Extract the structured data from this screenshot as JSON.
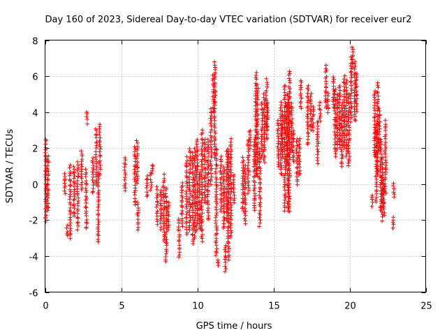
{
  "chart_data": {
    "type": "scatter",
    "title": "Day 160 of 2023, Sidereal Day-to-day VTEC variation (SDTVAR) for receiver eur2",
    "xlabel": "GPS time / hours",
    "ylabel": "SDTVAR / TECUs",
    "xlim": [
      0,
      25
    ],
    "ylim": [
      -6,
      8
    ],
    "xticks": [
      0,
      5,
      10,
      15,
      20,
      25
    ],
    "yticks": [
      -6,
      -4,
      -2,
      0,
      2,
      4,
      6,
      8
    ],
    "grid": true,
    "marker": "+",
    "color": "#ff0000",
    "segments": [
      [
        0.05,
        -2.1,
        2.5
      ],
      [
        0.18,
        -1.5,
        1.6
      ],
      [
        1.3,
        -0.5,
        0.6
      ],
      [
        1.45,
        -2.9,
        -2.3
      ],
      [
        1.65,
        -3.0,
        1.0
      ],
      [
        1.9,
        -1.8,
        1.0
      ],
      [
        2.15,
        -2.5,
        1.2
      ],
      [
        2.4,
        -0.3,
        1.8
      ],
      [
        2.7,
        -2.5,
        0.8
      ],
      [
        2.75,
        3.4,
        4.0
      ],
      [
        3.15,
        -0.5,
        1.5
      ],
      [
        3.35,
        0.0,
        3.1
      ],
      [
        3.5,
        -3.2,
        0.7
      ],
      [
        3.6,
        0.5,
        3.3
      ],
      [
        5.25,
        -0.4,
        1.5
      ],
      [
        5.9,
        -1.2,
        2.1
      ],
      [
        6.05,
        0.0,
        2.4
      ],
      [
        6.1,
        -2.5,
        -1.0
      ],
      [
        6.7,
        -0.7,
        0.5
      ],
      [
        6.95,
        -0.3,
        0.6
      ],
      [
        7.05,
        0.6,
        1.1
      ],
      [
        7.35,
        -2.2,
        -0.2
      ],
      [
        7.6,
        -2.5,
        -0.3
      ],
      [
        7.8,
        -3.2,
        0.5
      ],
      [
        7.95,
        -4.3,
        -0.2
      ],
      [
        8.1,
        -2.5,
        -1.0
      ],
      [
        8.8,
        -4.1,
        -1.9
      ],
      [
        9.0,
        -2.3,
        0.1
      ],
      [
        9.3,
        -2.8,
        1.5
      ],
      [
        9.5,
        -2.6,
        2.0
      ],
      [
        9.7,
        -3.3,
        1.7
      ],
      [
        9.85,
        -3.0,
        2.0
      ],
      [
        10.0,
        -2.5,
        2.5
      ],
      [
        10.15,
        -2.5,
        0.7
      ],
      [
        10.3,
        -3.2,
        3.0
      ],
      [
        10.5,
        -1.0,
        2.5
      ],
      [
        10.7,
        -2.0,
        2.5
      ],
      [
        10.9,
        0.0,
        4.2
      ],
      [
        11.05,
        4.0,
        6.0
      ],
      [
        11.15,
        1.5,
        6.8
      ],
      [
        11.25,
        -4.0,
        2.0
      ],
      [
        11.35,
        -4.5,
        -4.2
      ],
      [
        11.55,
        -1.5,
        1.5
      ],
      [
        11.75,
        -2.5,
        1.0
      ],
      [
        11.85,
        -4.8,
        -3.4
      ],
      [
        11.95,
        -2.0,
        1.8
      ],
      [
        12.05,
        -4.2,
        2.0
      ],
      [
        12.2,
        -3.0,
        2.5
      ],
      [
        12.4,
        -1.0,
        0.5
      ],
      [
        13.0,
        -1.5,
        1.5
      ],
      [
        13.15,
        -2.2,
        1.0
      ],
      [
        13.35,
        -0.5,
        2.5
      ],
      [
        13.45,
        2.0,
        3.0
      ],
      [
        13.75,
        -1.5,
        2.5
      ],
      [
        13.85,
        0.5,
        6.2
      ],
      [
        13.95,
        0.5,
        5.5
      ],
      [
        14.1,
        -2.3,
        2.0
      ],
      [
        14.25,
        1.5,
        4.5
      ],
      [
        14.4,
        1.2,
        5.0
      ],
      [
        14.55,
        2.5,
        5.8
      ],
      [
        14.6,
        3.0,
        4.5
      ],
      [
        15.3,
        1.0,
        3.5
      ],
      [
        15.5,
        0.5,
        4.5
      ],
      [
        15.6,
        1.5,
        4.0
      ],
      [
        15.75,
        -1.5,
        5.5
      ],
      [
        15.85,
        1.0,
        4.5
      ],
      [
        15.95,
        -1.5,
        5.0
      ],
      [
        16.05,
        -1.5,
        6.3
      ],
      [
        16.2,
        1.8,
        4.5
      ],
      [
        16.3,
        1.2,
        3.0
      ],
      [
        16.55,
        0.0,
        2.5
      ],
      [
        16.7,
        0.5,
        2.5
      ],
      [
        16.8,
        4.2,
        5.8
      ],
      [
        17.25,
        2.2,
        5.5
      ],
      [
        17.45,
        3.0,
        5.0
      ],
      [
        17.6,
        3.0,
        4.3
      ],
      [
        17.9,
        1.2,
        3.5
      ],
      [
        18.05,
        3.5,
        4.5
      ],
      [
        18.45,
        4.2,
        6.6
      ],
      [
        18.6,
        4.0,
        5.0
      ],
      [
        18.95,
        4.3,
        6.0
      ],
      [
        19.05,
        1.5,
        5.3
      ],
      [
        19.2,
        2.0,
        5.0
      ],
      [
        19.35,
        2.0,
        5.5
      ],
      [
        19.5,
        1.0,
        4.5
      ],
      [
        19.65,
        2.0,
        6.0
      ],
      [
        19.8,
        1.5,
        5.8
      ],
      [
        19.95,
        1.0,
        5.0
      ],
      [
        20.1,
        3.5,
        7.0
      ],
      [
        20.2,
        6.5,
        7.6
      ],
      [
        20.35,
        3.5,
        6.8
      ],
      [
        20.45,
        4.0,
        6.2
      ],
      [
        21.5,
        -1.2,
        -0.6
      ],
      [
        21.65,
        1.5,
        5.2
      ],
      [
        21.75,
        -1.0,
        3.3
      ],
      [
        21.85,
        0.5,
        5.6
      ],
      [
        21.95,
        2.0,
        4.2
      ],
      [
        22.05,
        -1.5,
        2.5
      ],
      [
        22.15,
        -2.0,
        1.5
      ],
      [
        22.25,
        -1.7,
        0.2
      ],
      [
        22.35,
        -0.5,
        3.5
      ],
      [
        22.85,
        -2.4,
        -1.9
      ],
      [
        22.9,
        -0.7,
        0.0
      ]
    ],
    "points_per_unit": 7
  }
}
